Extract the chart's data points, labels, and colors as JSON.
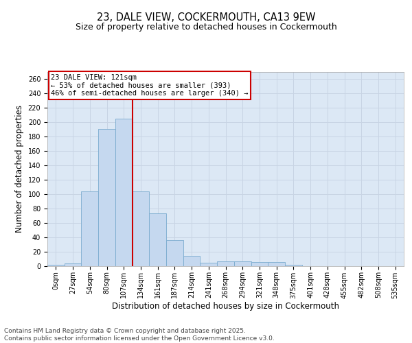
{
  "title_line1": "23, DALE VIEW, COCKERMOUTH, CA13 9EW",
  "title_line2": "Size of property relative to detached houses in Cockermouth",
  "xlabel": "Distribution of detached houses by size in Cockermouth",
  "ylabel": "Number of detached properties",
  "bar_labels": [
    "0sqm",
    "27sqm",
    "54sqm",
    "80sqm",
    "107sqm",
    "134sqm",
    "161sqm",
    "187sqm",
    "214sqm",
    "241sqm",
    "268sqm",
    "294sqm",
    "321sqm",
    "348sqm",
    "375sqm",
    "401sqm",
    "428sqm",
    "455sqm",
    "482sqm",
    "508sqm",
    "535sqm"
  ],
  "bar_values": [
    1,
    3,
    104,
    191,
    205,
    104,
    73,
    36,
    14,
    4,
    6,
    6,
    5,
    5,
    1,
    0,
    0,
    0,
    0,
    0,
    0
  ],
  "bar_color": "#c5d8ef",
  "bar_edge_color": "#7aabcf",
  "grid_color": "#c8d4e4",
  "background_color": "#dce8f5",
  "vline_x": 4.5,
  "vline_color": "#cc0000",
  "annotation_text": "23 DALE VIEW: 121sqm\n← 53% of detached houses are smaller (393)\n46% of semi-detached houses are larger (340) →",
  "annotation_box_color": "#ffffff",
  "annotation_box_edge": "#cc0000",
  "ylim": [
    0,
    270
  ],
  "yticks": [
    0,
    20,
    40,
    60,
    80,
    100,
    120,
    140,
    160,
    180,
    200,
    220,
    240,
    260
  ],
  "footer_line1": "Contains HM Land Registry data © Crown copyright and database right 2025.",
  "footer_line2": "Contains public sector information licensed under the Open Government Licence v3.0.",
  "title_fontsize": 10.5,
  "subtitle_fontsize": 9,
  "axis_label_fontsize": 8.5,
  "tick_fontsize": 7,
  "footer_fontsize": 6.5,
  "annotation_fontsize": 7.5
}
